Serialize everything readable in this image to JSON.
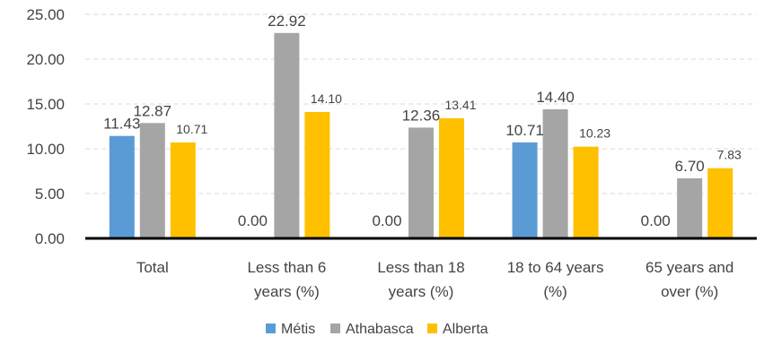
{
  "chart_data": {
    "type": "bar",
    "categories": [
      [
        "Total"
      ],
      [
        "Less than 6",
        "years (%)"
      ],
      [
        "Less than 18",
        "years (%)"
      ],
      [
        "18 to 64 years",
        "(%)"
      ],
      [
        "65 years and",
        "over (%)"
      ]
    ],
    "series": [
      {
        "name": "Métis",
        "color": "#5B9BD5",
        "values": [
          11.43,
          0.0,
          0.0,
          10.71,
          0.0
        ],
        "labels": [
          "11.43",
          "0.00",
          "0.00",
          "10.71",
          "0.00"
        ]
      },
      {
        "name": "Athabasca",
        "color": "#A5A5A5",
        "values": [
          12.87,
          22.92,
          12.36,
          14.4,
          6.7
        ],
        "labels": [
          "12.87",
          "22.92",
          "12.36",
          "14.40",
          "6.70"
        ]
      },
      {
        "name": "Alberta",
        "color": "#FFC000",
        "values": [
          10.71,
          14.1,
          13.41,
          10.23,
          7.83
        ],
        "labels": [
          "10.71",
          "14.10",
          "13.41",
          "10.23",
          "7.83"
        ]
      }
    ],
    "yticks": [
      "0.00",
      "5.00",
      "10.00",
      "15.00",
      "20.00",
      "25.00"
    ],
    "ylim": [
      0,
      25
    ],
    "grid": true,
    "legend_position": "bottom"
  }
}
